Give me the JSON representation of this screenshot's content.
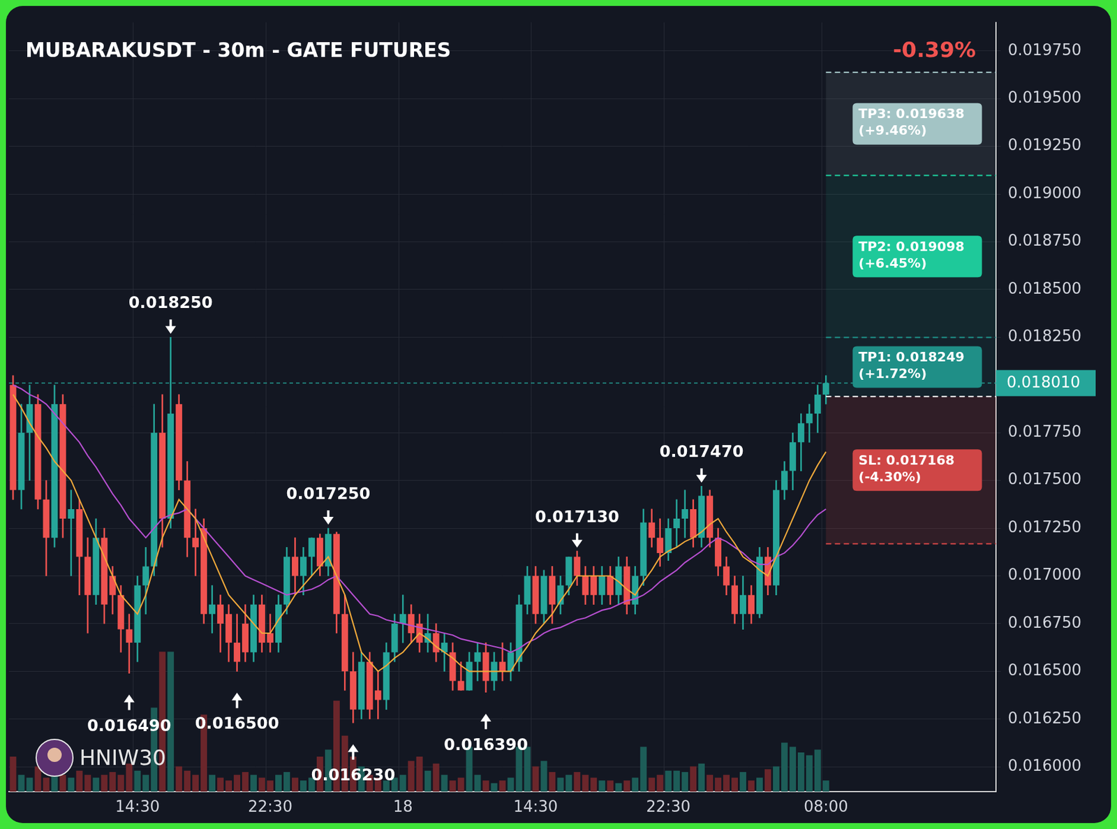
{
  "chart_data": {
    "type": "candlestick",
    "title": "MUBARAKUSDT - 30m - GATE FUTURES",
    "badge": "-0.39%",
    "watermark": "HNIW30",
    "x": [
      null,
      null,
      null,
      null,
      null,
      null,
      null,
      null,
      null,
      null,
      null,
      null,
      null,
      null,
      null,
      "14:30",
      null,
      null,
      null,
      null,
      null,
      null,
      null,
      null,
      null,
      null,
      null,
      null,
      null,
      null,
      null,
      "22:30",
      null,
      null,
      null,
      null,
      null,
      null,
      null,
      null,
      null,
      null,
      null,
      null,
      null,
      null,
      null,
      "18",
      null,
      null,
      null,
      null,
      null,
      null,
      null,
      null,
      null,
      null,
      null,
      null,
      null,
      null,
      null,
      "14:30",
      null,
      null,
      null,
      null,
      null,
      null,
      null,
      null,
      null,
      null,
      null,
      null,
      null,
      null,
      null,
      "22:30",
      null,
      null,
      null,
      null,
      null,
      null,
      null,
      null,
      null,
      null,
      null,
      null,
      null,
      null,
      null,
      null,
      null,
      null,
      "08:00",
      null,
      null,
      null,
      null,
      null,
      null,
      null,
      null,
      null,
      null,
      null,
      null,
      null,
      null,
      null,
      null,
      null,
      null,
      null,
      null
    ],
    "series": [
      {
        "type": "candlestick",
        "color": {
          "up": "#26a69a",
          "down": "#ef5350"
        },
        "open": [
          0.018,
          0.01745,
          0.01775,
          0.0179,
          0.0174,
          0.0172,
          0.0179,
          0.0173,
          0.01735,
          0.0171,
          0.0169,
          0.0172,
          0.017,
          0.0169,
          0.01672,
          0.01665,
          0.01695,
          0.01705,
          0.01775,
          0.0173,
          0.0179,
          0.0175,
          0.0172,
          0.01725,
          0.0168,
          0.01685,
          0.0168,
          0.01665,
          0.01675,
          0.0166,
          0.01685,
          0.0167,
          0.01665,
          0.01685,
          0.0171,
          0.017,
          0.0171,
          0.0172,
          0.01705,
          0.01722,
          0.0168,
          0.0165,
          0.0163,
          0.01655,
          0.0164,
          0.01635,
          0.0166,
          0.01675,
          0.0168,
          0.01675,
          0.01665,
          0.0167,
          0.0166,
          0.0166,
          0.01645,
          0.0164,
          0.01655,
          0.0166,
          0.01645,
          0.01655,
          0.0165,
          0.01655,
          0.01685,
          0.017,
          0.0168,
          0.017,
          0.01685,
          0.01695,
          0.0171,
          0.017,
          0.017,
          0.0169,
          0.017,
          0.0169,
          0.01705,
          0.01685,
          0.017,
          0.01728,
          0.0172,
          0.01712,
          0.01725,
          0.0173,
          0.01735,
          0.0172,
          0.01742,
          0.0172,
          0.01705,
          0.01695,
          0.0168,
          0.0169,
          0.0168,
          0.0171,
          0.01695,
          0.01745,
          0.01755,
          0.0177,
          0.0178,
          0.01785,
          0.01795,
          null,
          null,
          null,
          null,
          null,
          null,
          null,
          null,
          null,
          null,
          null,
          null,
          null,
          null,
          null,
          null,
          null,
          null,
          null,
          null
        ],
        "high": [
          0.01805,
          0.0179,
          0.018,
          0.01795,
          0.0175,
          0.018,
          0.01795,
          0.01745,
          0.0174,
          0.0172,
          0.0173,
          0.01725,
          0.01705,
          0.01695,
          0.0168,
          0.017,
          0.01715,
          0.0179,
          0.01795,
          0.01825,
          0.01795,
          0.0176,
          0.01735,
          0.0173,
          0.01695,
          0.0169,
          0.01685,
          0.0168,
          0.01685,
          0.0169,
          0.0169,
          0.0168,
          0.0169,
          0.01715,
          0.0172,
          0.01715,
          0.0172,
          0.01722,
          0.01725,
          0.01723,
          0.0169,
          0.0166,
          0.0166,
          0.0166,
          0.0165,
          0.01665,
          0.0168,
          0.0169,
          0.01685,
          0.0168,
          0.0168,
          0.01675,
          0.0167,
          0.01665,
          0.01655,
          0.0166,
          0.01665,
          0.01665,
          0.0166,
          0.01665,
          0.01665,
          0.0169,
          0.01705,
          0.01705,
          0.01703,
          0.01705,
          0.017,
          0.0171,
          0.01713,
          0.01705,
          0.01705,
          0.01705,
          0.01705,
          0.0171,
          0.0171,
          0.01705,
          0.01735,
          0.01735,
          0.0173,
          0.0173,
          0.0174,
          0.01745,
          0.0174,
          0.01747,
          0.01745,
          0.01725,
          0.0171,
          0.017,
          0.017,
          0.01695,
          0.01715,
          0.01715,
          0.0175,
          0.0176,
          0.01775,
          0.01785,
          0.0179,
          0.018,
          0.01805,
          null,
          null,
          null,
          null,
          null,
          null,
          null,
          null,
          null,
          null,
          null,
          null,
          null,
          null,
          null,
          null,
          null,
          null,
          null,
          null
        ],
        "low": [
          0.0174,
          0.01735,
          0.0175,
          0.01735,
          0.017,
          0.01715,
          0.0172,
          0.017,
          0.0169,
          0.0167,
          0.01685,
          0.01675,
          0.0168,
          0.0166,
          0.01649,
          0.01655,
          0.0168,
          0.017,
          0.01715,
          0.01725,
          0.01745,
          0.0171,
          0.017,
          0.01675,
          0.0167,
          0.0166,
          0.01655,
          0.0165,
          0.01655,
          0.01655,
          0.0166,
          0.0166,
          0.0166,
          0.0168,
          0.0169,
          0.0169,
          0.017,
          0.017,
          0.017,
          0.0167,
          0.0164,
          0.01623,
          0.01625,
          0.01625,
          0.01625,
          0.0163,
          0.01655,
          0.01665,
          0.01665,
          0.0166,
          0.0166,
          0.01655,
          0.0165,
          0.0164,
          0.0164,
          0.0164,
          0.01645,
          0.01639,
          0.0164,
          0.01645,
          0.01645,
          0.0165,
          0.0168,
          0.01675,
          0.01675,
          0.01675,
          0.0168,
          0.0169,
          0.01695,
          0.01685,
          0.01685,
          0.01685,
          0.01685,
          0.01685,
          0.0168,
          0.0168,
          0.01695,
          0.01715,
          0.01705,
          0.01708,
          0.01715,
          0.0172,
          0.01715,
          0.01715,
          0.01715,
          0.017,
          0.0169,
          0.01675,
          0.01672,
          0.01675,
          0.01678,
          0.0169,
          0.0169,
          0.0174,
          0.01745,
          0.01755,
          0.0177,
          0.01775,
          0.0179,
          null,
          null,
          null,
          null,
          null,
          null,
          null,
          null,
          null,
          null,
          null,
          null,
          null,
          null,
          null,
          null,
          null,
          null,
          null,
          null
        ],
        "close": [
          0.01745,
          0.01775,
          0.0179,
          0.0174,
          0.0172,
          0.0179,
          0.0173,
          0.01735,
          0.0171,
          0.0169,
          0.0172,
          0.01685,
          0.0169,
          0.01672,
          0.01665,
          0.01695,
          0.01705,
          0.01775,
          0.0173,
          0.01785,
          0.0175,
          0.0172,
          0.01715,
          0.0168,
          0.01685,
          0.01675,
          0.01665,
          0.01655,
          0.0166,
          0.01685,
          0.01665,
          0.01665,
          0.01685,
          0.0171,
          0.017,
          0.0171,
          0.0172,
          0.01705,
          0.01722,
          0.0168,
          0.0165,
          0.0163,
          0.01655,
          0.0163,
          0.01635,
          0.0166,
          0.01675,
          0.0168,
          0.0167,
          0.01665,
          0.0167,
          0.0166,
          0.01665,
          0.01645,
          0.0164,
          0.01655,
          0.0166,
          0.01645,
          0.01655,
          0.0165,
          0.0166,
          0.01685,
          0.017,
          0.0168,
          0.017,
          0.01685,
          0.01695,
          0.0171,
          0.017,
          0.0169,
          0.0169,
          0.017,
          0.0169,
          0.01705,
          0.01685,
          0.017,
          0.01728,
          0.0172,
          0.01712,
          0.01725,
          0.0173,
          0.01735,
          0.0172,
          0.01742,
          0.0172,
          0.01705,
          0.01695,
          0.0168,
          0.0169,
          0.0168,
          0.0171,
          0.01695,
          0.01745,
          0.01755,
          0.0177,
          0.0178,
          0.01785,
          0.01795,
          0.01801,
          null,
          null,
          null,
          null,
          null,
          null,
          null,
          null,
          null,
          null,
          null,
          null,
          null,
          null,
          null,
          null,
          null,
          null,
          null,
          null
        ]
      },
      {
        "type": "line",
        "color": "#f2a93b",
        "values": [
          0.01795,
          0.01788,
          0.0178,
          0.01773,
          0.01767,
          0.0176,
          0.01755,
          0.0175,
          0.0174,
          0.0173,
          0.0172,
          0.0171,
          0.017,
          0.0169,
          0.01685,
          0.0168,
          0.0169,
          0.01705,
          0.0172,
          0.0173,
          0.0174,
          0.01735,
          0.0173,
          0.0172,
          0.0171,
          0.017,
          0.0169,
          0.01685,
          0.0168,
          0.01675,
          0.0167,
          0.0167,
          0.01677,
          0.01683,
          0.0169,
          0.01695,
          0.017,
          0.01705,
          0.0171,
          0.017,
          0.0169,
          0.01675,
          0.0166,
          0.01655,
          0.0165,
          0.01653,
          0.01657,
          0.0166,
          0.01665,
          0.0167,
          0.01667,
          0.01663,
          0.0166,
          0.01657,
          0.01653,
          0.0165,
          0.0165,
          0.0165,
          0.0165,
          0.0165,
          0.0165,
          0.01657,
          0.01663,
          0.0167,
          0.01675,
          0.0168,
          0.01687,
          0.01693,
          0.017,
          0.017,
          0.017,
          0.017,
          0.017,
          0.01697,
          0.01693,
          0.0169,
          0.01697,
          0.01703,
          0.0171,
          0.01713,
          0.01715,
          0.01718,
          0.0172,
          0.01723,
          0.01727,
          0.0173,
          0.01723,
          0.01717,
          0.0171,
          0.01707,
          0.01703,
          0.017,
          0.0171,
          0.0172,
          0.0173,
          0.0174,
          0.0175,
          0.01758,
          0.01765,
          null,
          null,
          null,
          null,
          null,
          null,
          null,
          null,
          null,
          null,
          null,
          null,
          null,
          null,
          null,
          null,
          null,
          null,
          null,
          null
        ]
      },
      {
        "type": "line",
        "color": "#b64fd0",
        "values": [
          0.018,
          0.01798,
          0.01795,
          0.01793,
          0.0179,
          0.01785,
          0.0178,
          0.01775,
          0.0177,
          0.01763,
          0.01757,
          0.0175,
          0.01743,
          0.01737,
          0.0173,
          0.01725,
          0.0172,
          0.01725,
          0.0173,
          0.01732,
          0.01733,
          0.01735,
          0.0173,
          0.01725,
          0.0172,
          0.01715,
          0.0171,
          0.01705,
          0.017,
          0.01698,
          0.01696,
          0.01694,
          0.01692,
          0.0169,
          0.01691,
          0.01692,
          0.01693,
          0.01695,
          0.01698,
          0.017,
          0.01695,
          0.0169,
          0.01685,
          0.0168,
          0.01679,
          0.01677,
          0.01676,
          0.01675,
          0.01674,
          0.01673,
          0.01672,
          0.01671,
          0.0167,
          0.01669,
          0.01667,
          0.01666,
          0.01665,
          0.01664,
          0.01663,
          0.01662,
          0.0166,
          0.01662,
          0.01665,
          0.01667,
          0.0167,
          0.01672,
          0.01673,
          0.01675,
          0.01677,
          0.01678,
          0.0168,
          0.01682,
          0.01683,
          0.01685,
          0.01687,
          0.01688,
          0.0169,
          0.01693,
          0.01697,
          0.017,
          0.01703,
          0.01707,
          0.0171,
          0.01713,
          0.01717,
          0.0172,
          0.01718,
          0.01715,
          0.01712,
          0.01708,
          0.01706,
          0.01706,
          0.0171,
          0.01712,
          0.01716,
          0.01721,
          0.01727,
          0.01732,
          0.01735,
          null,
          null,
          null,
          null,
          null,
          null,
          null,
          null,
          null,
          null,
          null,
          null,
          null,
          null,
          null,
          null,
          null,
          null,
          null,
          null
        ]
      },
      {
        "type": "bar",
        "axis": "y2",
        "color": {
          "up": "#1d5d58",
          "down": "#6b262b"
        },
        "values": [
          25,
          12,
          10,
          18,
          10,
          15,
          12,
          10,
          15,
          12,
          10,
          12,
          14,
          12,
          20,
          15,
          12,
          60,
          100,
          100,
          18,
          15,
          12,
          55,
          12,
          10,
          8,
          12,
          14,
          12,
          10,
          8,
          12,
          14,
          10,
          8,
          10,
          25,
          30,
          65,
          40,
          25,
          18,
          12,
          10,
          8,
          10,
          12,
          22,
          25,
          15,
          20,
          12,
          8,
          10,
          32,
          12,
          8,
          6,
          8,
          10,
          32,
          32,
          18,
          22,
          14,
          10,
          12,
          14,
          12,
          10,
          8,
          8,
          6,
          8,
          10,
          32,
          10,
          12,
          15,
          15,
          14,
          18,
          20,
          12,
          10,
          12,
          10,
          14,
          8,
          10,
          16,
          18,
          35,
          32,
          28,
          26,
          30,
          8,
          null,
          null,
          null,
          null,
          null,
          null,
          null,
          null,
          null,
          null,
          null,
          null,
          null,
          null,
          null,
          null,
          null,
          null,
          null,
          null
        ]
      }
    ],
    "ylim": [
      0.01587,
      0.0199
    ],
    "yticks": [
      {
        "value": 0.016,
        "label": "0.016000"
      },
      {
        "value": 0.01625,
        "label": "0.016250"
      },
      {
        "value": 0.0165,
        "label": "0.016500"
      },
      {
        "value": 0.01675,
        "label": "0.016750"
      },
      {
        "value": 0.017,
        "label": "0.017000"
      },
      {
        "value": 0.01725,
        "label": "0.017250"
      },
      {
        "value": 0.0175,
        "label": "0.017500"
      },
      {
        "value": 0.01775,
        "label": "0.017750"
      },
      {
        "value": 0.01825,
        "label": "0.018250"
      },
      {
        "value": 0.0185,
        "label": "0.018500"
      },
      {
        "value": 0.01875,
        "label": "0.018750"
      },
      {
        "value": 0.019,
        "label": "0.019000"
      },
      {
        "value": 0.01925,
        "label": "0.019250"
      },
      {
        "value": 0.0195,
        "label": "0.019500"
      },
      {
        "value": 0.01975,
        "label": "0.019750"
      }
    ],
    "y2lim": [
      0,
      550
    ],
    "grid": true,
    "annotations": [
      {
        "kind": "high",
        "index": 19,
        "value": 0.01825,
        "label": "0.018250"
      },
      {
        "kind": "low",
        "index": 14,
        "value": 0.01649,
        "label": "0.016490"
      },
      {
        "kind": "low",
        "index": 27,
        "value": 0.0165,
        "label": "0.016500"
      },
      {
        "kind": "high",
        "index": 38,
        "value": 0.01725,
        "label": "0.017250"
      },
      {
        "kind": "low",
        "index": 41,
        "value": 0.01623,
        "label": "0.016230"
      },
      {
        "kind": "low",
        "index": 57,
        "value": 0.01639,
        "label": "0.016390"
      },
      {
        "kind": "high",
        "index": 68,
        "value": 0.01713,
        "label": "0.017130"
      },
      {
        "kind": "high",
        "index": 83,
        "value": 0.01747,
        "label": "0.017470"
      }
    ],
    "entry": 0.01794,
    "levels": [
      {
        "value": 0.019638,
        "label": [
          "TP3: 0.019638",
          "(+9.46%)"
        ],
        "color": "#a3c4c5"
      },
      {
        "value": 0.019098,
        "label": [
          "TP2: 0.019098",
          "(+6.45%)"
        ],
        "color": "#1ec99a"
      },
      {
        "value": 0.018249,
        "label": [
          "TP1: 0.018249",
          "(+1.72%)"
        ],
        "color": "#1f8f87"
      },
      {
        "value": 0.017168,
        "label": [
          "SL: 0.017168",
          "(-4.30%)"
        ],
        "color": "#cf4646"
      }
    ],
    "price_label": {
      "value": 0.01801,
      "label": "0.018010",
      "color": "#26a69a"
    }
  }
}
